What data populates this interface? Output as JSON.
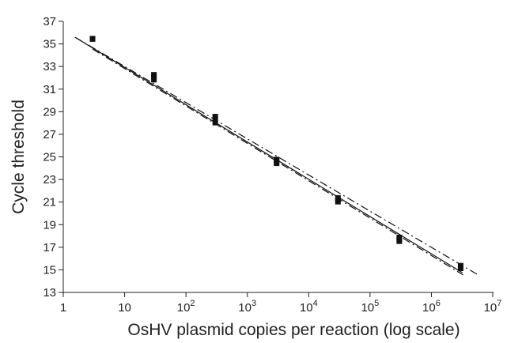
{
  "chart_data": {
    "type": "scatter",
    "title": "",
    "xlabel": "OsHV plasmid copies per reaction (log scale)",
    "ylabel": "Cycle threshold",
    "x_scale": "log",
    "xlim": [
      1,
      10000000
    ],
    "ylim": [
      13,
      37
    ],
    "x_ticks": [
      {
        "value": 1,
        "base": "1",
        "exp": ""
      },
      {
        "value": 10,
        "base": "10",
        "exp": ""
      },
      {
        "value": 100,
        "base": "10",
        "exp": "2"
      },
      {
        "value": 1000,
        "base": "10",
        "exp": "3"
      },
      {
        "value": 10000,
        "base": "10",
        "exp": "4"
      },
      {
        "value": 100000,
        "base": "10",
        "exp": "5"
      },
      {
        "value": 1000000,
        "base": "10",
        "exp": "6"
      },
      {
        "value": 10000000,
        "base": "10",
        "exp": "7"
      }
    ],
    "y_ticks": [
      13,
      15,
      17,
      19,
      21,
      23,
      25,
      27,
      29,
      31,
      33,
      35,
      37
    ],
    "grid": false,
    "legend": "none",
    "points": [
      {
        "x": 3,
        "y": 35.4
      },
      {
        "x": 3,
        "y": 35.5
      },
      {
        "x": 30,
        "y": 31.8
      },
      {
        "x": 30,
        "y": 32.1
      },
      {
        "x": 30,
        "y": 32.3
      },
      {
        "x": 300,
        "y": 28.0
      },
      {
        "x": 300,
        "y": 28.3
      },
      {
        "x": 300,
        "y": 28.6
      },
      {
        "x": 3000,
        "y": 24.4
      },
      {
        "x": 3000,
        "y": 24.6
      },
      {
        "x": 3000,
        "y": 24.8
      },
      {
        "x": 30000,
        "y": 21.0
      },
      {
        "x": 30000,
        "y": 21.2
      },
      {
        "x": 30000,
        "y": 21.4
      },
      {
        "x": 300000,
        "y": 17.5
      },
      {
        "x": 300000,
        "y": 17.7
      },
      {
        "x": 300000,
        "y": 17.9
      },
      {
        "x": 3000000,
        "y": 15.1
      },
      {
        "x": 3000000,
        "y": 15.4
      }
    ],
    "lines": [
      {
        "style": "solid",
        "x": [
          1.6,
          3200000
        ],
        "y": [
          35.55,
          14.75
        ]
      },
      {
        "style": "dash-dot",
        "x": [
          1.55,
          6000000
        ],
        "y": [
          35.6,
          14.5
        ]
      },
      {
        "style": "dash-dot",
        "x": [
          3,
          3300000
        ],
        "y": [
          34.55,
          14.55
        ]
      }
    ],
    "colors": {
      "marks": "#111111",
      "axis": "#222222"
    }
  }
}
